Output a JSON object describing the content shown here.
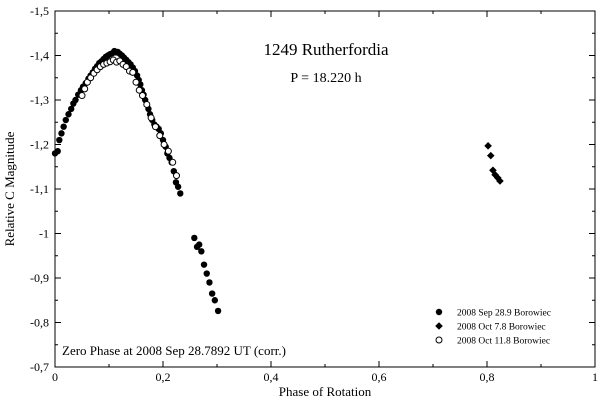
{
  "chart_data": {
    "type": "scatter",
    "title": "1249 Rutherfordia",
    "subtitle": "P = 18.220 h",
    "xlabel": "Phase of Rotation",
    "ylabel": "Relative C Magnitude",
    "xlim": [
      0,
      1
    ],
    "ylim": [
      -1.5,
      -0.7
    ],
    "y_inverted": true,
    "x_ticks": [
      0,
      0.2,
      0.4,
      0.6,
      0.8,
      1
    ],
    "x_tick_labels": [
      "0",
      "0,2",
      "0,4",
      "0,6",
      "0,8",
      "1"
    ],
    "y_ticks": [
      -1.5,
      -1.4,
      -1.3,
      -1.2,
      -1.1,
      -1,
      -0.9,
      -0.8,
      -0.7
    ],
    "y_tick_labels": [
      "-1,5",
      "-1,4",
      "-1,3",
      "-1,2",
      "-1,1",
      "-1",
      "-0,9",
      "-0,8",
      "-0,7"
    ],
    "annotation": "Zero Phase at 2008 Sep 28.7892 UT (corr.)",
    "legend_position": "bottom-right",
    "series": [
      {
        "name": "2008 Sep 28.9 Borowiec",
        "marker": "filled-circle",
        "points": [
          [
            0.0,
            -1.18
          ],
          [
            0.005,
            -1.185
          ],
          [
            0.008,
            -1.21
          ],
          [
            0.012,
            -1.225
          ],
          [
            0.016,
            -1.24
          ],
          [
            0.02,
            -1.255
          ],
          [
            0.025,
            -1.268
          ],
          [
            0.03,
            -1.28
          ],
          [
            0.034,
            -1.292
          ],
          [
            0.038,
            -1.3
          ],
          [
            0.043,
            -1.312
          ],
          [
            0.048,
            -1.322
          ],
          [
            0.052,
            -1.33
          ],
          [
            0.057,
            -1.338
          ],
          [
            0.062,
            -1.348
          ],
          [
            0.066,
            -1.355
          ],
          [
            0.07,
            -1.362
          ],
          [
            0.074,
            -1.37
          ],
          [
            0.078,
            -1.376
          ],
          [
            0.082,
            -1.383
          ],
          [
            0.086,
            -1.387
          ],
          [
            0.09,
            -1.392
          ],
          [
            0.094,
            -1.397
          ],
          [
            0.098,
            -1.4
          ],
          [
            0.102,
            -1.403
          ],
          [
            0.106,
            -1.405
          ],
          [
            0.11,
            -1.41
          ],
          [
            0.113,
            -1.407
          ],
          [
            0.116,
            -1.408
          ],
          [
            0.12,
            -1.404
          ],
          [
            0.124,
            -1.4
          ],
          [
            0.128,
            -1.395
          ],
          [
            0.132,
            -1.39
          ],
          [
            0.136,
            -1.385
          ],
          [
            0.14,
            -1.38
          ],
          [
            0.144,
            -1.373
          ],
          [
            0.148,
            -1.365
          ],
          [
            0.152,
            -1.355
          ],
          [
            0.155,
            -1.345
          ],
          [
            0.158,
            -1.335
          ],
          [
            0.161,
            -1.322
          ],
          [
            0.164,
            -1.312
          ],
          [
            0.167,
            -1.3
          ],
          [
            0.17,
            -1.29
          ],
          [
            0.173,
            -1.28
          ],
          [
            0.176,
            -1.268
          ],
          [
            0.18,
            -1.255
          ],
          [
            0.184,
            -1.245
          ],
          [
            0.188,
            -1.24
          ],
          [
            0.192,
            -1.235
          ],
          [
            0.196,
            -1.225
          ],
          [
            0.2,
            -1.21
          ],
          [
            0.205,
            -1.195
          ],
          [
            0.208,
            -1.18
          ],
          [
            0.212,
            -1.17
          ],
          [
            0.216,
            -1.16
          ],
          [
            0.22,
            -1.14
          ],
          [
            0.224,
            -1.115
          ],
          [
            0.228,
            -1.105
          ],
          [
            0.232,
            -1.09
          ],
          [
            0.258,
            -0.99
          ],
          [
            0.263,
            -0.97
          ],
          [
            0.267,
            -0.975
          ],
          [
            0.271,
            -0.96
          ],
          [
            0.276,
            -0.93
          ],
          [
            0.281,
            -0.91
          ],
          [
            0.286,
            -0.89
          ],
          [
            0.291,
            -0.865
          ],
          [
            0.296,
            -0.85
          ],
          [
            0.302,
            -0.826
          ]
        ]
      },
      {
        "name": "2008 Oct 7.8 Borowiec",
        "marker": "filled-diamond",
        "points": [
          [
            0.802,
            -1.197
          ],
          [
            0.807,
            -1.175
          ],
          [
            0.811,
            -1.142
          ],
          [
            0.815,
            -1.132
          ],
          [
            0.82,
            -1.125
          ],
          [
            0.824,
            -1.118
          ]
        ]
      },
      {
        "name": "2008 Oct 11.8 Borowiec",
        "marker": "open-circle",
        "points": [
          [
            0.05,
            -1.31
          ],
          [
            0.055,
            -1.325
          ],
          [
            0.06,
            -1.34
          ],
          [
            0.066,
            -1.35
          ],
          [
            0.072,
            -1.36
          ],
          [
            0.078,
            -1.368
          ],
          [
            0.084,
            -1.375
          ],
          [
            0.09,
            -1.38
          ],
          [
            0.096,
            -1.383
          ],
          [
            0.102,
            -1.386
          ],
          [
            0.108,
            -1.39
          ],
          [
            0.114,
            -1.385
          ],
          [
            0.12,
            -1.388
          ],
          [
            0.126,
            -1.38
          ],
          [
            0.132,
            -1.375
          ],
          [
            0.138,
            -1.365
          ],
          [
            0.144,
            -1.362
          ],
          [
            0.15,
            -1.34
          ],
          [
            0.156,
            -1.322
          ],
          [
            0.162,
            -1.31
          ],
          [
            0.17,
            -1.29
          ],
          [
            0.178,
            -1.26
          ],
          [
            0.186,
            -1.24
          ],
          [
            0.194,
            -1.22
          ],
          [
            0.202,
            -1.2
          ],
          [
            0.21,
            -1.185
          ],
          [
            0.218,
            -1.16
          ],
          [
            0.225,
            -1.13
          ]
        ]
      }
    ]
  }
}
